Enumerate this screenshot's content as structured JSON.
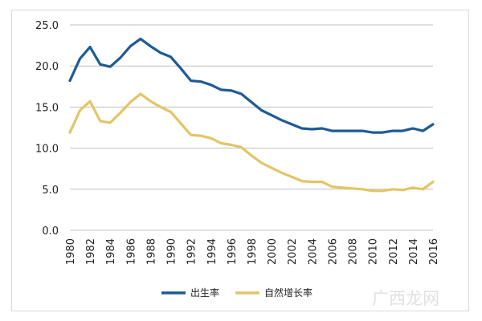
{
  "chart_data": {
    "type": "line",
    "title": "",
    "xlabel": "",
    "ylabel": "",
    "ylim": [
      0,
      25
    ],
    "y_ticks": [
      "0.0",
      "5.0",
      "10.0",
      "15.0",
      "20.0",
      "25.0"
    ],
    "x_ticks": [
      "1980",
      "1982",
      "1984",
      "1986",
      "1988",
      "1990",
      "1992",
      "1994",
      "1996",
      "1998",
      "2000",
      "2002",
      "2004",
      "2006",
      "2008",
      "2010",
      "2012",
      "2014",
      "2016"
    ],
    "grid": "horizontal",
    "legend_position": "bottom",
    "x": [
      1980,
      1981,
      1982,
      1983,
      1984,
      1985,
      1986,
      1987,
      1988,
      1989,
      1990,
      1991,
      1992,
      1993,
      1994,
      1995,
      1996,
      1997,
      1998,
      1999,
      2000,
      2001,
      2002,
      2003,
      2004,
      2005,
      2006,
      2007,
      2008,
      2009,
      2010,
      2011,
      2012,
      2013,
      2014,
      2015,
      2016
    ],
    "series": [
      {
        "name": "出生率",
        "color": "#1f5a96",
        "values": [
          18.2,
          20.9,
          22.3,
          20.2,
          19.9,
          21.0,
          22.4,
          23.3,
          22.4,
          21.6,
          21.1,
          19.7,
          18.2,
          18.1,
          17.7,
          17.1,
          17.0,
          16.6,
          15.6,
          14.6,
          14.0,
          13.4,
          12.9,
          12.4,
          12.3,
          12.4,
          12.1,
          12.1,
          12.1,
          12.1,
          11.9,
          11.9,
          12.1,
          12.1,
          12.4,
          12.1,
          12.9
        ]
      },
      {
        "name": "自然增长率",
        "color": "#e3c565",
        "values": [
          11.9,
          14.6,
          15.7,
          13.3,
          13.1,
          14.3,
          15.6,
          16.6,
          15.7,
          15.0,
          14.4,
          13.0,
          11.6,
          11.5,
          11.2,
          10.6,
          10.4,
          10.1,
          9.1,
          8.2,
          7.6,
          7.0,
          6.5,
          6.0,
          5.9,
          5.9,
          5.3,
          5.2,
          5.1,
          5.0,
          4.8,
          4.8,
          5.0,
          4.9,
          5.2,
          5.0,
          5.9
        ]
      }
    ]
  },
  "watermark": "广西龙网"
}
